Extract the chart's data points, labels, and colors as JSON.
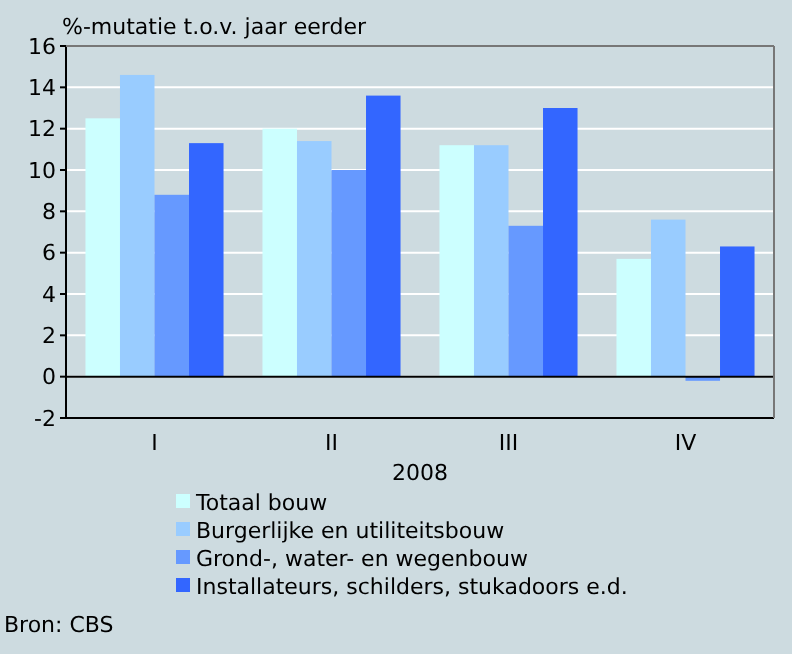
{
  "chart_data": {
    "type": "bar",
    "ylabel": "%-mutatie t.o.v. jaar eerder",
    "xlabel": "2008",
    "categories": [
      "I",
      "II",
      "III",
      "IV"
    ],
    "series": [
      {
        "name": "Totaal bouw",
        "color": "#ccffff",
        "values": [
          12.5,
          12.0,
          11.2,
          5.7
        ]
      },
      {
        "name": "Burgerlijke en utiliteitsbouw",
        "color": "#99ccff",
        "values": [
          14.6,
          11.4,
          11.2,
          7.6
        ]
      },
      {
        "name": "Grond-, water- en wegenbouw",
        "color": "#6699ff",
        "values": [
          8.8,
          10.0,
          7.3,
          -0.2
        ]
      },
      {
        "name": "Installateurs, schilders, stukadoors e.d.",
        "color": "#3366ff",
        "values": [
          11.3,
          13.6,
          13.0,
          6.3
        ]
      }
    ],
    "ylim": [
      -2,
      16
    ],
    "yticks": [
      -2,
      0,
      2,
      4,
      6,
      8,
      10,
      12,
      14,
      16
    ],
    "grid": "y",
    "legend": "bottom",
    "annotations": [
      "Bron: CBS"
    ]
  }
}
